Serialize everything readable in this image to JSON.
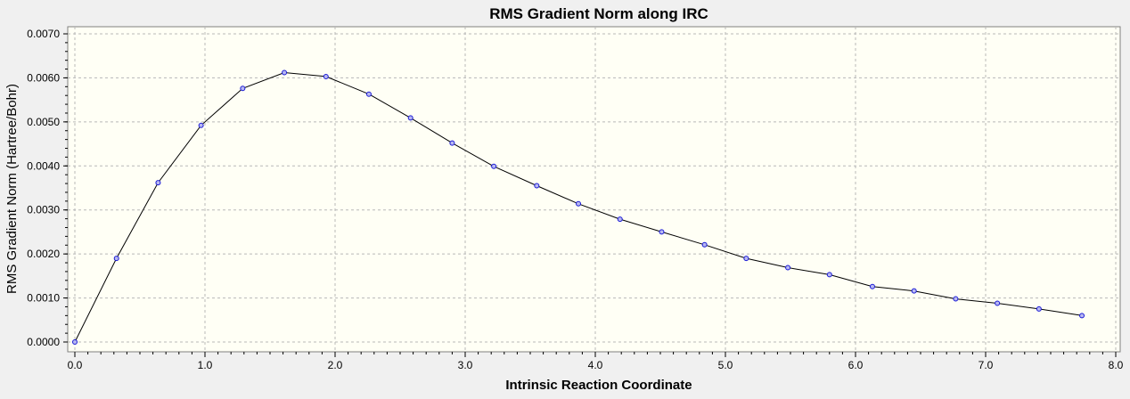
{
  "chart_data": {
    "type": "line",
    "title": "RMS Gradient Norm along IRC",
    "xlabel": "Intrinsic Reaction Coordinate",
    "ylabel": "RMS Gradient Norm (Hartree/Bohr)",
    "xlim": [
      0.0,
      8.0
    ],
    "ylim": [
      0.0,
      0.007
    ],
    "x_ticks": [
      "0.0",
      "1.0",
      "2.0",
      "3.0",
      "4.0",
      "5.0",
      "6.0",
      "7.0",
      "8.0"
    ],
    "y_ticks": [
      "0.0000",
      "0.0010",
      "0.0020",
      "0.0030",
      "0.0040",
      "0.0050",
      "0.0060",
      "0.0070"
    ],
    "grid": true,
    "series": [
      {
        "x": [
          0.0,
          0.32,
          0.64,
          0.97,
          1.29,
          1.61,
          1.93,
          2.26,
          2.58,
          2.9,
          3.22,
          3.55,
          3.87,
          4.19,
          4.51,
          4.84,
          5.16,
          5.48,
          5.8,
          6.13,
          6.45,
          6.77,
          7.09,
          7.41,
          7.74
        ],
        "y": [
          0.0,
          0.0019,
          0.00362,
          0.00492,
          0.00576,
          0.00612,
          0.00603,
          0.00563,
          0.00509,
          0.00452,
          0.00399,
          0.00355,
          0.00314,
          0.00279,
          0.0025,
          0.00221,
          0.0019,
          0.00169,
          0.00153,
          0.00126,
          0.00116,
          0.00098,
          0.00088,
          0.00075,
          0.0006
        ]
      }
    ]
  },
  "colors": {
    "plot_background": "#fffff5",
    "line": "#000000",
    "marker_stroke": "#1a1ad6",
    "marker_fill": "#b8b8f0",
    "grid": "#b8b8b8"
  }
}
